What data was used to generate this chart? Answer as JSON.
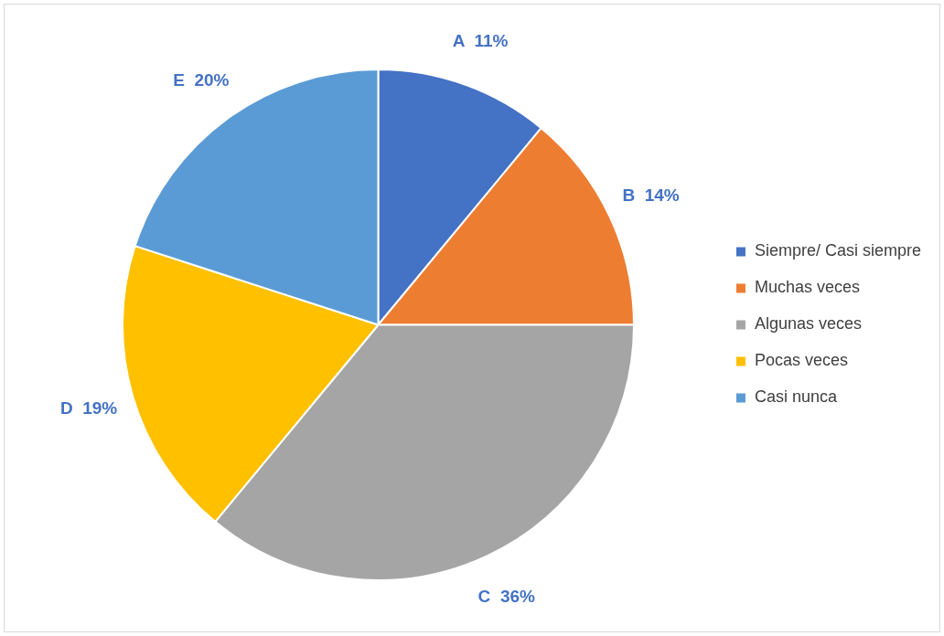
{
  "chart_data": {
    "type": "pie",
    "categories": [
      "Siempre/ Casi siempre",
      "Muchas veces",
      "Algunas veces",
      "Pocas veces",
      "Casi nunca"
    ],
    "values": [
      11,
      14,
      36,
      19,
      20
    ],
    "colors": [
      "#4472c4",
      "#ed7d31",
      "#a5a5a5",
      "#ffc000",
      "#5b9bd5"
    ],
    "value_labels": [
      "A  11%",
      "B  14%",
      "C  36%",
      "D  19%",
      "E  20%"
    ],
    "legend": "right"
  }
}
